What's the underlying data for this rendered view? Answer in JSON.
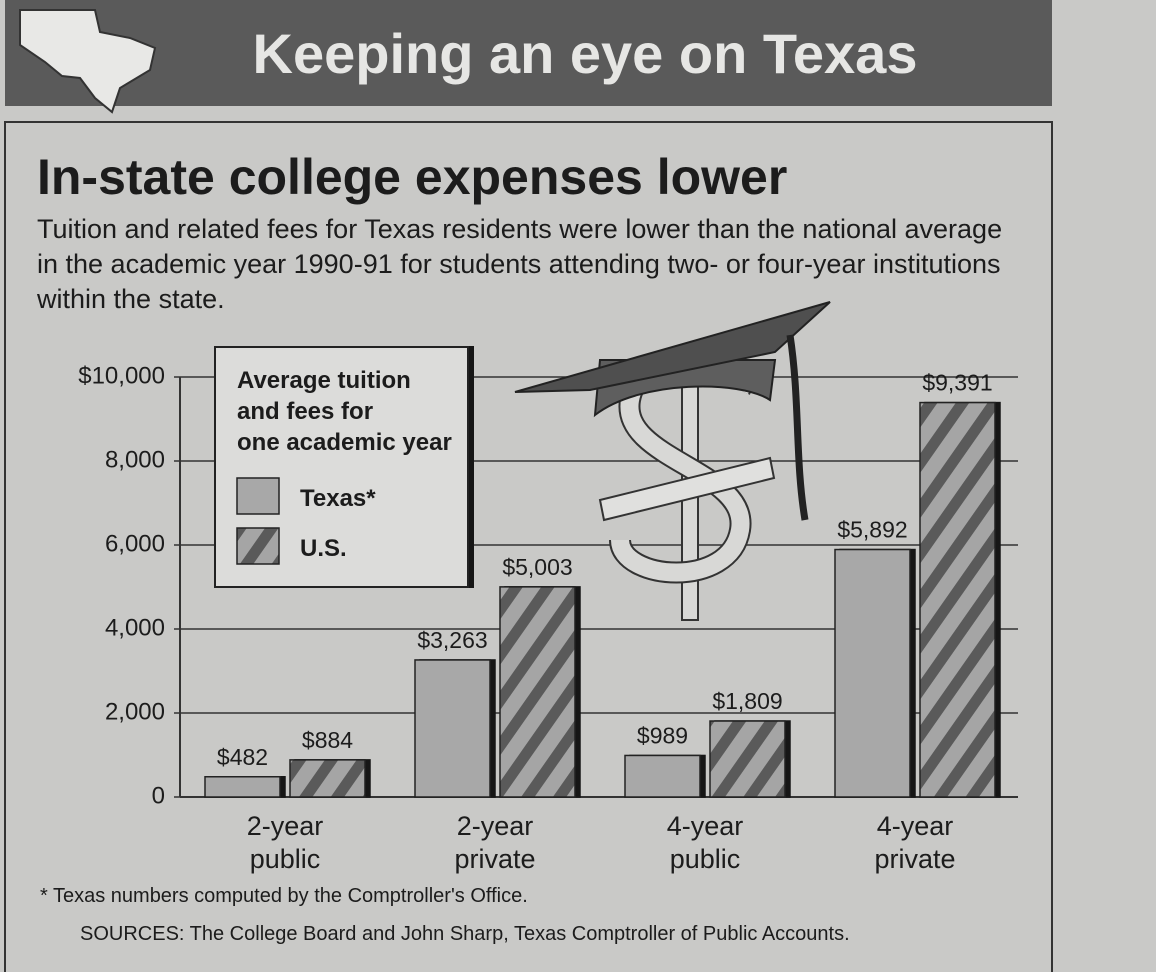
{
  "header": "Keeping an eye on Texas",
  "footnote": "* Texas numbers computed by the Comptroller's Office.",
  "sources": "SOURCES: The College Board and John Sharp, Texas Comptroller of Public Accounts.",
  "chart_data": {
    "type": "bar",
    "title": "In-state college expenses lower",
    "subtitle": "Tuition and related fees for Texas residents were lower than the national average in the academic year 1990-91 for students attending two- or four-year institutions within the state.",
    "legend_title": "Average tuition and fees for one academic year",
    "legend_position": "upper left",
    "categories": [
      "2-year public",
      "2-year private",
      "4-year public",
      "4-year private"
    ],
    "series": [
      {
        "name": "Texas*",
        "color": "#a8a8a8",
        "values": [
          482,
          3263,
          989,
          5892
        ],
        "value_labels": [
          "$482",
          "$3,263",
          "$989",
          "$5,892"
        ]
      },
      {
        "name": "U.S.",
        "color": "#8a8a8a",
        "hatch": "diagonal",
        "values": [
          884,
          5003,
          1809,
          9391
        ],
        "value_labels": [
          "$884",
          "$5,003",
          "$1,809",
          "$9,391"
        ]
      }
    ],
    "ylim": [
      0,
      10000
    ],
    "yticks": [
      {
        "value": 10000,
        "label": "$10,000"
      },
      {
        "value": 8000,
        "label": "8,000"
      },
      {
        "value": 6000,
        "label": "6,000"
      },
      {
        "value": 4000,
        "label": "4,000"
      },
      {
        "value": 2000,
        "label": "2,000"
      },
      0
    ],
    "grid": true
  }
}
